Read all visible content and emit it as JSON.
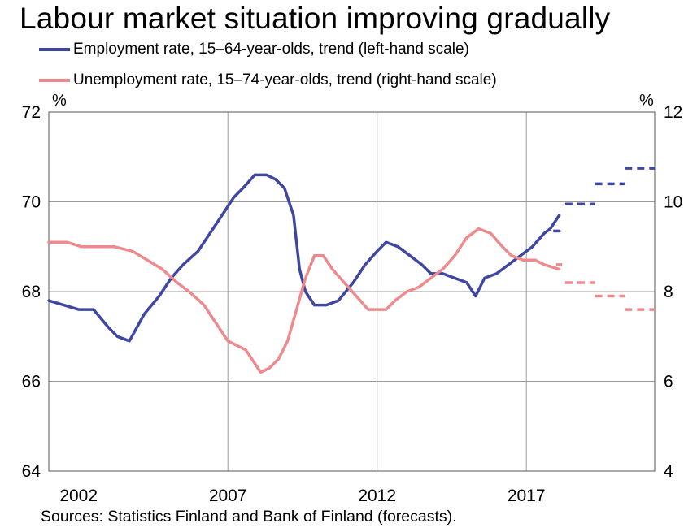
{
  "chart_data": {
    "type": "line",
    "title": "Labour market situation improving gradually",
    "left_unit": "%",
    "right_unit": "%",
    "source": "Sources: Statistics Finland and Bank of Finland (forecasts).",
    "x_ticks": [
      "2002",
      "2007",
      "2012",
      "2017"
    ],
    "y_left": {
      "range": [
        64,
        72
      ],
      "ticks": [
        "64",
        "66",
        "68",
        "70",
        "72"
      ]
    },
    "y_right": {
      "range": [
        4,
        12
      ],
      "ticks": [
        "4",
        "6",
        "8",
        "10",
        "12"
      ]
    },
    "grid": "vertical lines at 2007, 2012, 2017; horizontal lines at each tick",
    "series": [
      {
        "name": "Employment rate, 15–64-year-olds, trend (left-hand scale)",
        "axis": "left",
        "color": "#3F47A0",
        "points": [
          [
            2001.0,
            67.8
          ],
          [
            2001.5,
            67.7
          ],
          [
            2002.0,
            67.6
          ],
          [
            2002.5,
            67.6
          ],
          [
            2003.0,
            67.2
          ],
          [
            2003.3,
            67.0
          ],
          [
            2003.7,
            66.9
          ],
          [
            2004.2,
            67.5
          ],
          [
            2004.7,
            67.9
          ],
          [
            2005.1,
            68.3
          ],
          [
            2005.5,
            68.6
          ],
          [
            2006.0,
            68.9
          ],
          [
            2006.4,
            69.3
          ],
          [
            2006.8,
            69.7
          ],
          [
            2007.2,
            70.1
          ],
          [
            2007.5,
            70.3
          ],
          [
            2007.9,
            70.6
          ],
          [
            2008.3,
            70.6
          ],
          [
            2008.6,
            70.5
          ],
          [
            2008.9,
            70.3
          ],
          [
            2009.2,
            69.7
          ],
          [
            2009.4,
            68.5
          ],
          [
            2009.6,
            68.0
          ],
          [
            2009.9,
            67.7
          ],
          [
            2010.3,
            67.7
          ],
          [
            2010.7,
            67.8
          ],
          [
            2011.2,
            68.2
          ],
          [
            2011.6,
            68.6
          ],
          [
            2012.0,
            68.9
          ],
          [
            2012.3,
            69.1
          ],
          [
            2012.7,
            69.0
          ],
          [
            2013.1,
            68.8
          ],
          [
            2013.5,
            68.6
          ],
          [
            2013.8,
            68.4
          ],
          [
            2014.2,
            68.4
          ],
          [
            2014.6,
            68.3
          ],
          [
            2015.0,
            68.2
          ],
          [
            2015.3,
            67.9
          ],
          [
            2015.6,
            68.3
          ],
          [
            2016.0,
            68.4
          ],
          [
            2016.4,
            68.6
          ],
          [
            2016.8,
            68.8
          ],
          [
            2017.2,
            69.0
          ],
          [
            2017.6,
            69.3
          ],
          [
            2017.8,
            69.4
          ],
          [
            2018.1,
            69.7
          ]
        ],
        "forecast": [
          [
            2017.9,
            69.35,
            2018.2,
            69.35
          ],
          [
            2018.3,
            69.95,
            2019.3,
            69.95
          ],
          [
            2019.3,
            70.4,
            2020.3,
            70.4
          ],
          [
            2020.3,
            70.75,
            2021.3,
            70.75
          ]
        ]
      },
      {
        "name": "Unemployment rate, 15–74-year-olds, trend (right-hand scale)",
        "axis": "right",
        "color": "#EE8A8E",
        "points": [
          [
            2001.0,
            9.1
          ],
          [
            2001.6,
            9.1
          ],
          [
            2002.1,
            9.0
          ],
          [
            2002.6,
            9.0
          ],
          [
            2003.2,
            9.0
          ],
          [
            2003.8,
            8.9
          ],
          [
            2004.3,
            8.7
          ],
          [
            2004.8,
            8.5
          ],
          [
            2005.3,
            8.2
          ],
          [
            2005.7,
            8.0
          ],
          [
            2006.2,
            7.7
          ],
          [
            2006.6,
            7.3
          ],
          [
            2007.0,
            6.9
          ],
          [
            2007.3,
            6.8
          ],
          [
            2007.6,
            6.7
          ],
          [
            2007.9,
            6.4
          ],
          [
            2008.1,
            6.2
          ],
          [
            2008.4,
            6.3
          ],
          [
            2008.7,
            6.5
          ],
          [
            2009.0,
            6.9
          ],
          [
            2009.3,
            7.6
          ],
          [
            2009.6,
            8.3
          ],
          [
            2009.9,
            8.8
          ],
          [
            2010.2,
            8.8
          ],
          [
            2010.5,
            8.5
          ],
          [
            2010.9,
            8.2
          ],
          [
            2011.3,
            7.9
          ],
          [
            2011.7,
            7.6
          ],
          [
            2012.0,
            7.6
          ],
          [
            2012.3,
            7.6
          ],
          [
            2012.6,
            7.8
          ],
          [
            2013.0,
            8.0
          ],
          [
            2013.4,
            8.1
          ],
          [
            2013.8,
            8.3
          ],
          [
            2014.2,
            8.5
          ],
          [
            2014.6,
            8.8
          ],
          [
            2015.0,
            9.2
          ],
          [
            2015.4,
            9.4
          ],
          [
            2015.8,
            9.3
          ],
          [
            2016.2,
            9.0
          ],
          [
            2016.5,
            8.8
          ],
          [
            2016.9,
            8.7
          ],
          [
            2017.3,
            8.7
          ],
          [
            2017.6,
            8.6
          ],
          [
            2018.1,
            8.5
          ]
        ],
        "forecast": [
          [
            2018.0,
            8.6,
            2018.2,
            8.6
          ],
          [
            2018.3,
            8.2,
            2019.3,
            8.2
          ],
          [
            2019.3,
            7.9,
            2020.3,
            7.9
          ],
          [
            2020.3,
            7.6,
            2021.3,
            7.6
          ]
        ]
      }
    ]
  }
}
